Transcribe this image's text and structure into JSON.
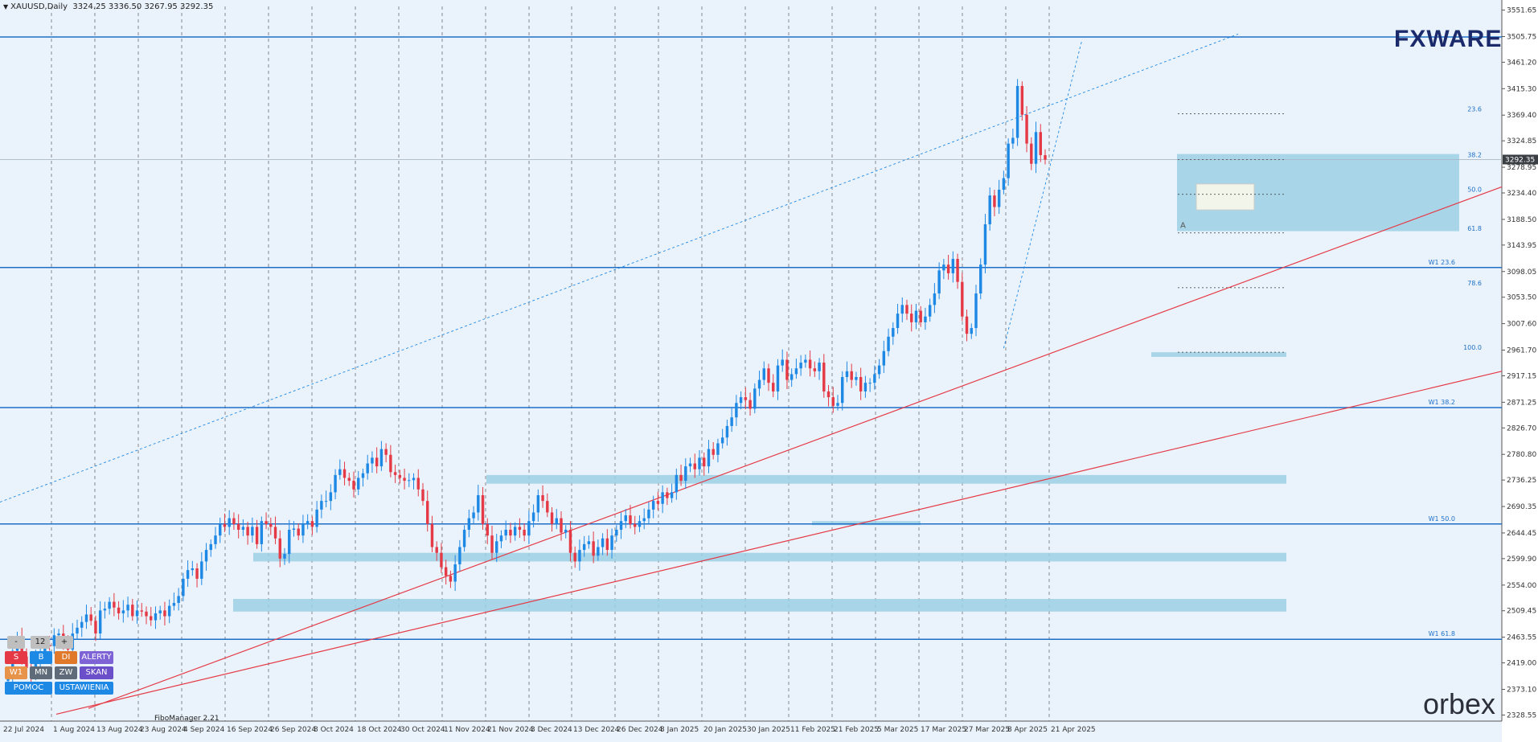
{
  "header": {
    "symbol": "XAUUSD,Daily",
    "ohlc": "3324.25 3336.50 3267.95 3292.35"
  },
  "brand": {
    "fxware": "FXWARE",
    "orbex": "orbex",
    "fibo": "FiboManager 2.21"
  },
  "current_price_label": "3292.35",
  "fib_labels": [
    "23.6",
    "38.2",
    "50.0",
    "61.8",
    "78.6",
    "100.0"
  ],
  "fib_marker": "A",
  "weekly_labels": [
    "W1 23.6",
    "W1 38.2",
    "W1 50.0",
    "W1 61.8"
  ],
  "controls": {
    "row1": [
      "-",
      "12",
      "+"
    ],
    "row2": [
      "S",
      "B",
      "DI",
      "ALERTY"
    ],
    "row3": [
      "W1",
      "MN",
      "ZW",
      "SKAN"
    ],
    "row4": [
      "POMOC",
      "USTAWIENIA"
    ]
  },
  "colors": {
    "bull": "#1e88e5",
    "bear": "#e53946",
    "zone": "#9cd0e4",
    "trend": "#e53946",
    "hline": "#1e6fc8",
    "bg": "#eaf3fb"
  },
  "chart_data": {
    "type": "candlestick",
    "title": "XAUUSD,Daily",
    "y_ticks": [
      "3551.65",
      "3505.75",
      "3461.20",
      "3415.30",
      "3369.40",
      "3324.85",
      "3278.95",
      "3234.40",
      "3188.50",
      "3143.95",
      "3098.05",
      "3053.50",
      "3007.60",
      "2961.70",
      "2917.15",
      "2871.25",
      "2826.70",
      "2780.80",
      "2736.25",
      "2690.35",
      "2644.45",
      "2599.90",
      "2554.00",
      "2509.45",
      "2463.55",
      "2419.00",
      "2373.10",
      "2328.55"
    ],
    "x_ticks": [
      "22 Jul 2024",
      "1 Aug 2024",
      "13 Aug 2024",
      "23 Aug 2024",
      "4 Sep 2024",
      "16 Sep 2024",
      "26 Sep 2024",
      "8 Oct 2024",
      "18 Oct 2024",
      "30 Oct 2024",
      "11 Nov 2024",
      "21 Nov 2024",
      "3 Dec 2024",
      "13 Dec 2024",
      "26 Dec 2024",
      "8 Jan 2025",
      "20 Jan 2025",
      "30 Jan 2025",
      "11 Feb 2025",
      "21 Feb 2025",
      "5 Mar 2025",
      "17 Mar 2025",
      "27 Mar 2025",
      "8 Apr 2025",
      "21 Apr 2025"
    ],
    "ylim": [
      2318,
      3558
    ],
    "last_price": 3292.35,
    "closes": [
      2398,
      2440,
      2462,
      2430,
      2410,
      2400,
      2425,
      2438,
      2450,
      2448,
      2467,
      2470,
      2456,
      2442,
      2470,
      2480,
      2490,
      2503,
      2492,
      2470,
      2510,
      2513,
      2525,
      2515,
      2505,
      2510,
      2520,
      2500,
      2510,
      2508,
      2500,
      2493,
      2505,
      2510,
      2500,
      2518,
      2523,
      2535,
      2565,
      2580,
      2583,
      2565,
      2595,
      2615,
      2625,
      2640,
      2660,
      2655,
      2670,
      2660,
      2650,
      2655,
      2640,
      2655,
      2625,
      2665,
      2660,
      2655,
      2635,
      2600,
      2608,
      2650,
      2652,
      2640,
      2660,
      2665,
      2655,
      2685,
      2700,
      2700,
      2715,
      2745,
      2755,
      2740,
      2735,
      2720,
      2740,
      2748,
      2765,
      2775,
      2760,
      2790,
      2780,
      2750,
      2745,
      2740,
      2735,
      2736,
      2740,
      2720,
      2700,
      2660,
      2620,
      2610,
      2585,
      2570,
      2560,
      2590,
      2620,
      2650,
      2670,
      2680,
      2710,
      2660,
      2640,
      2610,
      2630,
      2640,
      2650,
      2640,
      2655,
      2650,
      2640,
      2665,
      2680,
      2710,
      2700,
      2680,
      2660,
      2670,
      2645,
      2650,
      2610,
      2595,
      2615,
      2625,
      2630,
      2605,
      2620,
      2635,
      2615,
      2640,
      2650,
      2665,
      2675,
      2660,
      2655,
      2665,
      2670,
      2685,
      2700,
      2695,
      2715,
      2705,
      2715,
      2745,
      2735,
      2760,
      2765,
      2755,
      2775,
      2760,
      2790,
      2780,
      2800,
      2810,
      2830,
      2845,
      2870,
      2880,
      2875,
      2860,
      2895,
      2910,
      2930,
      2905,
      2890,
      2935,
      2945,
      2910,
      2920,
      2930,
      2940,
      2945,
      2930,
      2925,
      2940,
      2890,
      2880,
      2865,
      2870,
      2915,
      2925,
      2910,
      2915,
      2890,
      2905,
      2905,
      2920,
      2935,
      2960,
      2985,
      3000,
      3025,
      3040,
      3025,
      3010,
      3030,
      3010,
      3020,
      3040,
      3060,
      3100,
      3110,
      3095,
      3120,
      3080,
      3020,
      2990,
      3000,
      3060,
      3110,
      3180,
      3230,
      3210,
      3240,
      3260,
      3320,
      3330,
      3420,
      3370,
      3320,
      3285,
      3340,
      3300,
      3292
    ]
  }
}
